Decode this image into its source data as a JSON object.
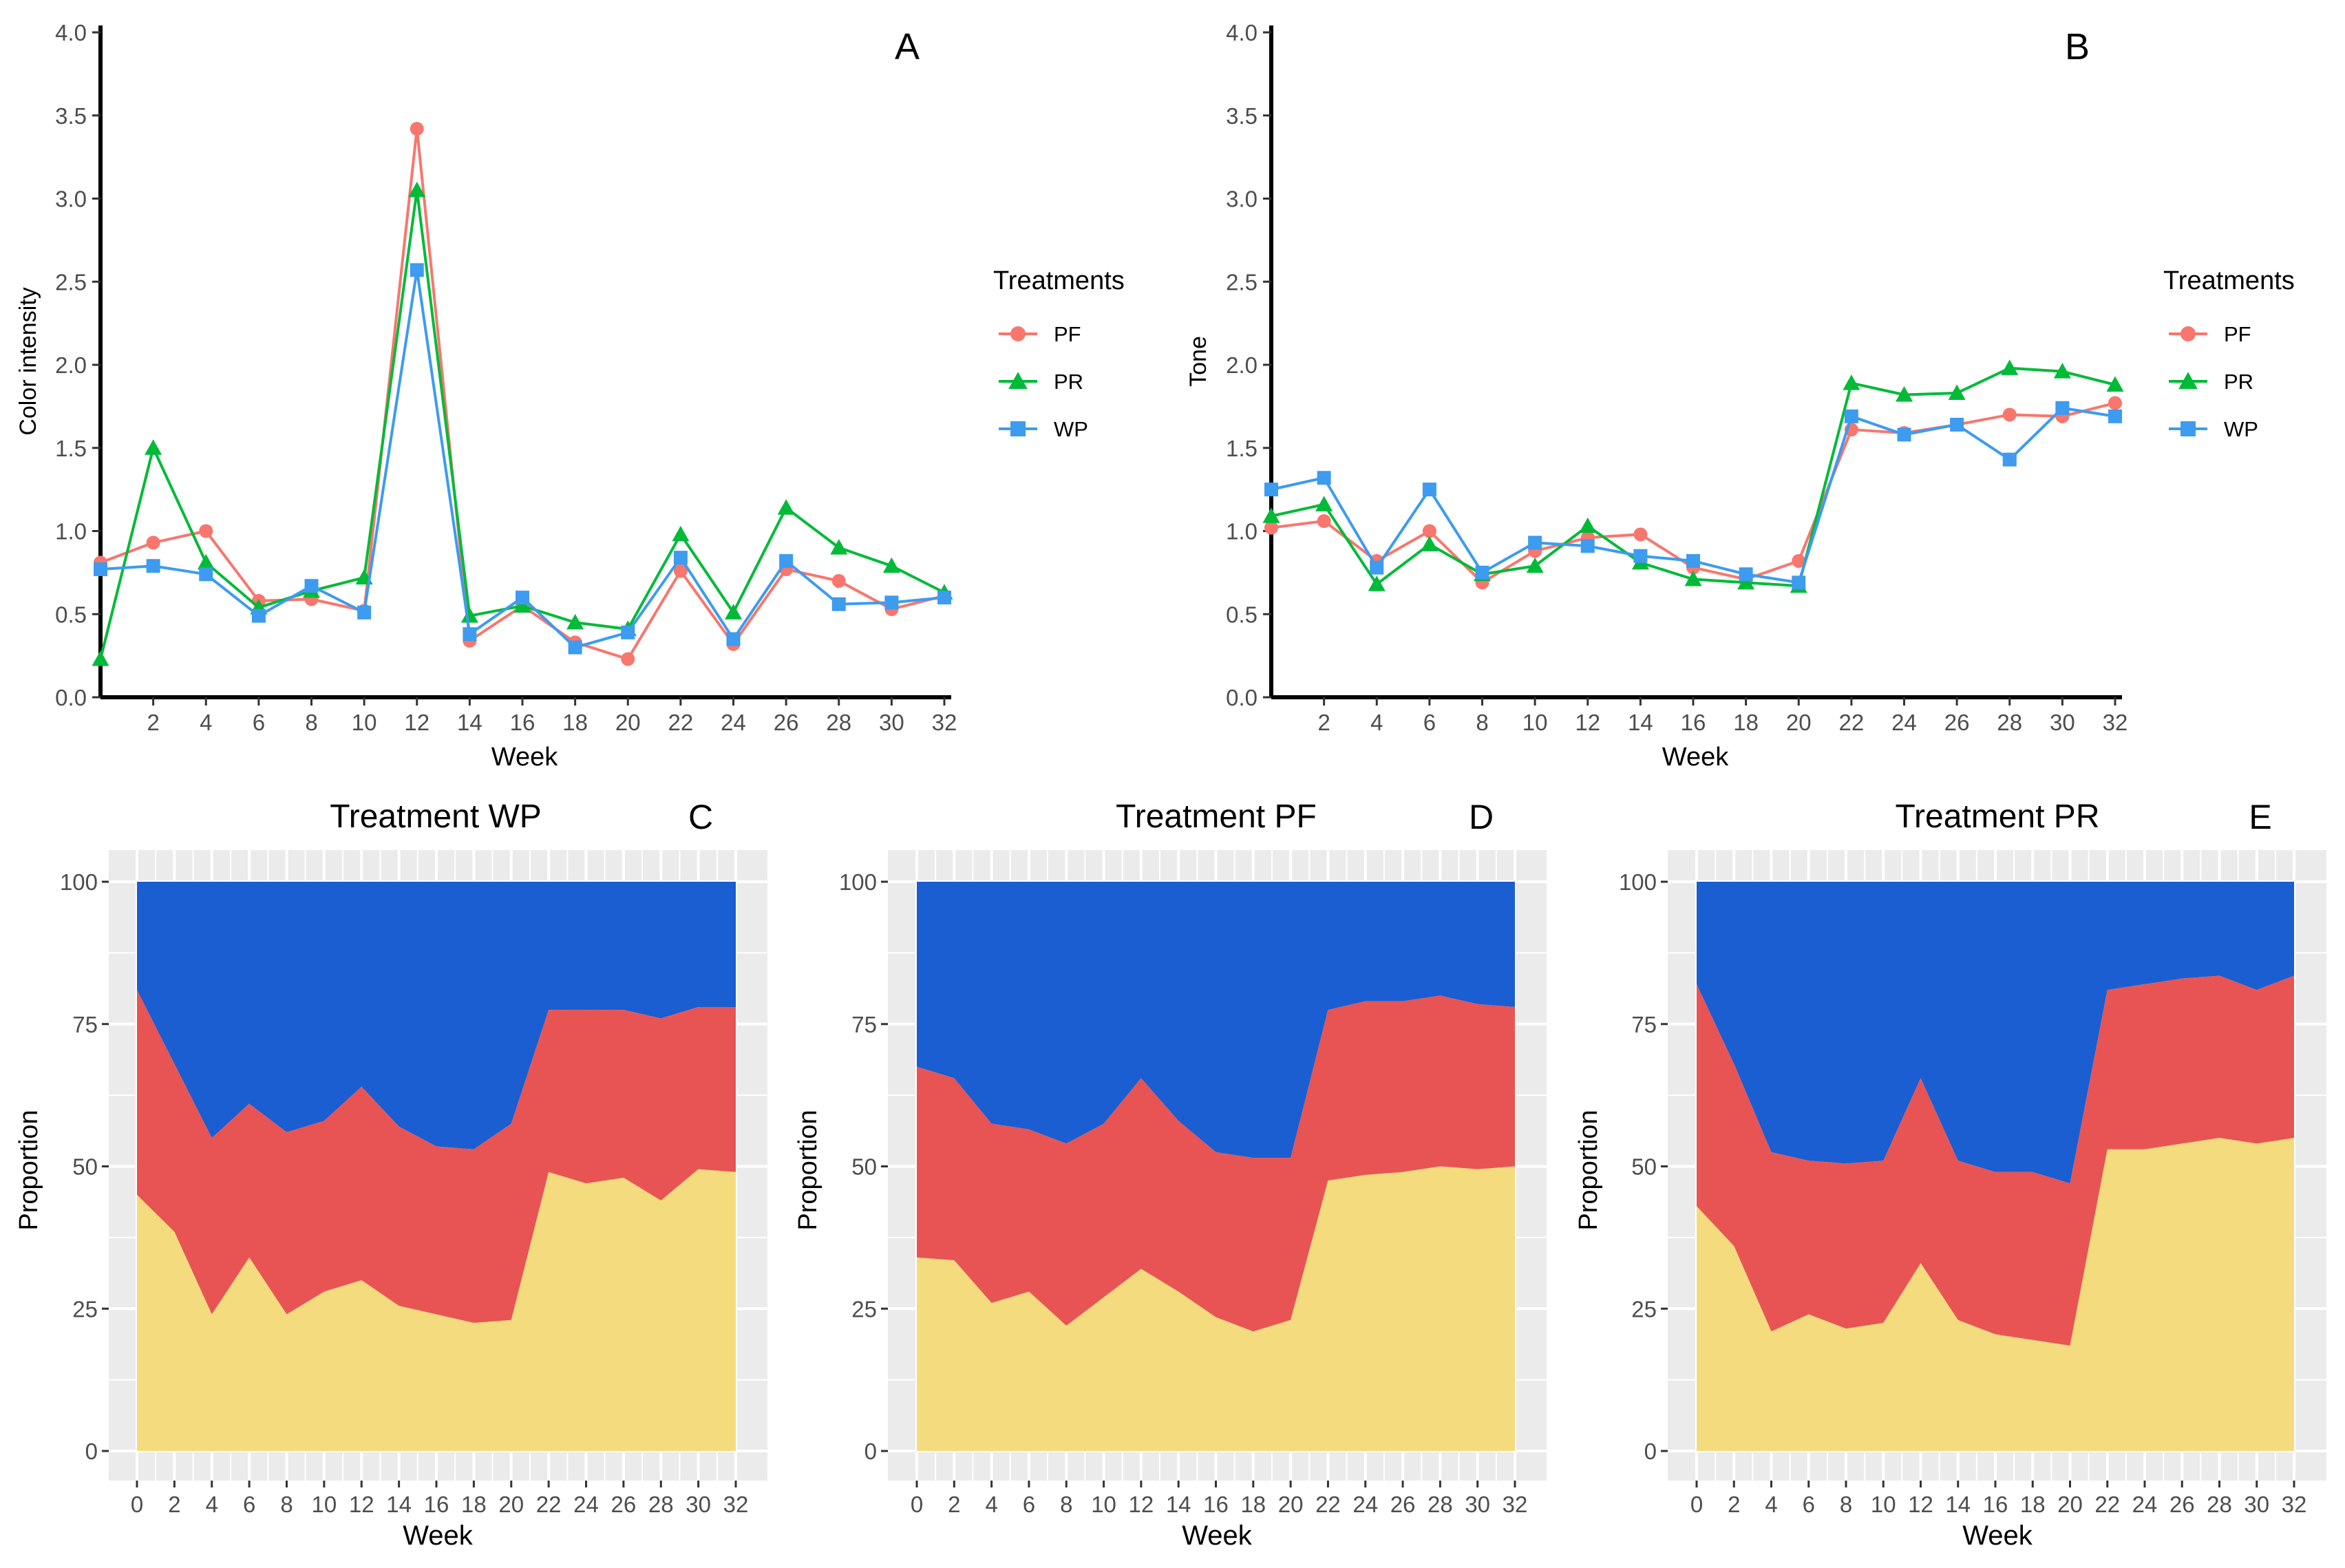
{
  "chart_data": [
    {
      "type": "line",
      "panel_label": "A",
      "xlabel": "Week",
      "ylabel": "Color intensity",
      "ylim": [
        0,
        4.0
      ],
      "yticks": [
        "0.0",
        "0.5",
        "1.0",
        "1.5",
        "2.0",
        "2.5",
        "3.0",
        "3.5",
        "4.0"
      ],
      "xticks": [
        "2",
        "4",
        "6",
        "8",
        "10",
        "12",
        "14",
        "16",
        "18",
        "20",
        "22",
        "24",
        "26",
        "28",
        "30",
        "32"
      ],
      "x": [
        0,
        2,
        4,
        6,
        8,
        10,
        12,
        14,
        16,
        18,
        20,
        22,
        24,
        26,
        28,
        30,
        32
      ],
      "legend_title": "Treatments",
      "series": [
        {
          "name": "PF",
          "color": "#F8766D",
          "marker": "circle",
          "values": [
            0.81,
            0.93,
            1.0,
            0.58,
            0.59,
            0.52,
            3.42,
            0.34,
            0.55,
            0.33,
            0.23,
            0.76,
            0.32,
            0.77,
            0.7,
            0.53,
            0.61
          ]
        },
        {
          "name": "PR",
          "color": "#00BA38",
          "marker": "triangle",
          "values": [
            0.23,
            1.5,
            0.81,
            0.54,
            0.64,
            0.72,
            3.05,
            0.49,
            0.55,
            0.45,
            0.41,
            0.98,
            0.51,
            1.14,
            0.9,
            0.79,
            0.63
          ]
        },
        {
          "name": "WP",
          "color": "#3D9BF0",
          "marker": "square",
          "values": [
            0.77,
            0.79,
            0.74,
            0.49,
            0.67,
            0.51,
            2.57,
            0.38,
            0.6,
            0.3,
            0.39,
            0.84,
            0.35,
            0.82,
            0.56,
            0.57,
            0.6
          ]
        }
      ]
    },
    {
      "type": "line",
      "panel_label": "B",
      "xlabel": "Week",
      "ylabel": "Tone",
      "ylim": [
        0,
        4.0
      ],
      "yticks": [
        "0.0",
        "0.5",
        "1.0",
        "1.5",
        "2.0",
        "2.5",
        "3.0",
        "3.5",
        "4.0"
      ],
      "xticks": [
        "2",
        "4",
        "6",
        "8",
        "10",
        "12",
        "14",
        "16",
        "18",
        "20",
        "22",
        "24",
        "26",
        "28",
        "30",
        "32"
      ],
      "x": [
        0,
        2,
        4,
        6,
        8,
        10,
        12,
        14,
        16,
        18,
        20,
        22,
        24,
        26,
        28,
        30,
        32
      ],
      "legend_title": "Treatments",
      "series": [
        {
          "name": "PF",
          "color": "#F8766D",
          "marker": "circle",
          "values": [
            1.02,
            1.06,
            0.82,
            1.0,
            0.69,
            0.88,
            0.96,
            0.98,
            0.78,
            0.71,
            0.82,
            1.61,
            1.59,
            1.64,
            1.7,
            1.69,
            1.77
          ]
        },
        {
          "name": "PR",
          "color": "#00BA38",
          "marker": "triangle",
          "values": [
            1.09,
            1.16,
            0.68,
            0.92,
            0.74,
            0.79,
            1.03,
            0.81,
            0.71,
            0.69,
            0.67,
            1.89,
            1.82,
            1.83,
            1.98,
            1.96,
            1.88
          ]
        },
        {
          "name": "WP",
          "color": "#3D9BF0",
          "marker": "square",
          "values": [
            1.25,
            1.32,
            0.78,
            1.25,
            0.75,
            0.93,
            0.91,
            0.85,
            0.82,
            0.74,
            0.69,
            1.69,
            1.58,
            1.64,
            1.43,
            1.74,
            1.69
          ]
        }
      ]
    },
    {
      "type": "area",
      "title": "Treatment WP",
      "panel_label": "C",
      "xlabel": "Week",
      "ylabel": "Proportion",
      "ylim": [
        0,
        100
      ],
      "yticks": [
        "0",
        "25",
        "50",
        "75",
        "100"
      ],
      "xticks": [
        "0",
        "2",
        "4",
        "6",
        "8",
        "10",
        "12",
        "14",
        "16",
        "18",
        "20",
        "22",
        "24",
        "26",
        "28",
        "30",
        "32"
      ],
      "x": [
        0,
        2,
        4,
        6,
        8,
        10,
        12,
        14,
        16,
        18,
        20,
        22,
        24,
        26,
        28,
        30,
        32
      ],
      "colors": {
        "bottom": "#F4DC7E",
        "middle": "#E85453",
        "top": "#1A5ED1"
      },
      "bottom_boundary": [
        45,
        38.5,
        24,
        34,
        24,
        28,
        30,
        25.5,
        24,
        22.5,
        23,
        49,
        47,
        48,
        44,
        49.5,
        49
      ],
      "middle_boundary": [
        81,
        68,
        55,
        61,
        56,
        58,
        64,
        57,
        53.5,
        53,
        57.5,
        77.5,
        77.5,
        77.5,
        76,
        78,
        78
      ]
    },
    {
      "type": "area",
      "title": "Treatment PF",
      "panel_label": "D",
      "xlabel": "Week",
      "ylabel": "Proportion",
      "ylim": [
        0,
        100
      ],
      "yticks": [
        "0",
        "25",
        "50",
        "75",
        "100"
      ],
      "xticks": [
        "0",
        "2",
        "4",
        "6",
        "8",
        "10",
        "12",
        "14",
        "16",
        "18",
        "20",
        "22",
        "24",
        "26",
        "28",
        "30",
        "32"
      ],
      "x": [
        0,
        2,
        4,
        6,
        8,
        10,
        12,
        14,
        16,
        18,
        20,
        22,
        24,
        26,
        28,
        30,
        32
      ],
      "colors": {
        "bottom": "#F4DC7E",
        "middle": "#E85453",
        "top": "#1A5ED1"
      },
      "bottom_boundary": [
        34,
        33.5,
        26,
        28,
        22,
        27,
        32,
        28,
        23.5,
        21,
        23,
        47.5,
        48.5,
        49,
        50,
        49.5,
        50
      ],
      "middle_boundary": [
        67.5,
        65.5,
        57.5,
        56.5,
        54,
        57.5,
        65.5,
        58,
        52.5,
        51.5,
        51.5,
        77.5,
        79,
        79,
        80,
        78.5,
        78
      ]
    },
    {
      "type": "area",
      "title": "Treatment PR",
      "panel_label": "E",
      "xlabel": "Week",
      "ylabel": "Proportion",
      "ylim": [
        0,
        100
      ],
      "yticks": [
        "0",
        "25",
        "50",
        "75",
        "100"
      ],
      "xticks": [
        "0",
        "2",
        "4",
        "6",
        "8",
        "10",
        "12",
        "14",
        "16",
        "18",
        "20",
        "22",
        "24",
        "26",
        "28",
        "30",
        "32"
      ],
      "x": [
        0,
        2,
        4,
        6,
        8,
        10,
        12,
        14,
        16,
        18,
        20,
        22,
        24,
        26,
        28,
        30,
        32
      ],
      "colors": {
        "bottom": "#F4DC7E",
        "middle": "#E85453",
        "top": "#1A5ED1"
      },
      "bottom_boundary": [
        43,
        36,
        21,
        24,
        21.5,
        22.5,
        33,
        23,
        20.5,
        19.5,
        18.5,
        53,
        53,
        54,
        55,
        54,
        55
      ],
      "middle_boundary": [
        82,
        68,
        52.5,
        51,
        50.5,
        51,
        65.5,
        51,
        49,
        49,
        47,
        81,
        82,
        83,
        83.5,
        81,
        83.5
      ]
    }
  ]
}
